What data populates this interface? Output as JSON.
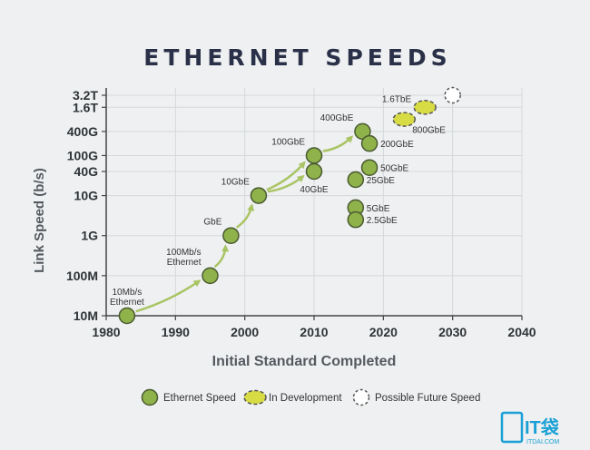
{
  "colors": {
    "grid": "#d5d8db",
    "axis": "#444444",
    "point_fill": "#8fb24b",
    "point_stroke": "#4a5a30",
    "dev_fill": "#d7dc45",
    "dev_stroke": "#555555",
    "future_fill": "#ffffff",
    "future_stroke": "#555555",
    "arrow": "#a9c463",
    "title": "#2a3048"
  },
  "watermark": {
    "brand": "IT袋",
    "url": "ITDAI.COM"
  },
  "chart_data": {
    "type": "scatter",
    "title": "ETHERNET SPEEDS",
    "xlabel": "Initial Standard Completed",
    "ylabel": "Link Speed (b/s)",
    "xlim": [
      1980,
      2040
    ],
    "xticks": [
      1980,
      1990,
      2000,
      2010,
      2020,
      2030,
      2040
    ],
    "y_scale": "log",
    "yticks": [
      {
        "label": "3.2T",
        "value": 3200000000000.0
      },
      {
        "label": "1.6T",
        "value": 1600000000000.0
      },
      {
        "label": "400G",
        "value": 400000000000.0
      },
      {
        "label": "100G",
        "value": 100000000000.0
      },
      {
        "label": "40G",
        "value": 40000000000.0
      },
      {
        "label": "10G",
        "value": 10000000000.0
      },
      {
        "label": "1G",
        "value": 1000000000.0
      },
      {
        "label": "100M",
        "value": 100000000.0
      },
      {
        "label": "10M",
        "value": 10000000.0
      }
    ],
    "grid": true,
    "legend_position": "bottom",
    "legend": [
      {
        "label": "Ethernet Speed",
        "kind": "ethernet"
      },
      {
        "label": "In Development",
        "kind": "dev"
      },
      {
        "label": "Possible Future Speed",
        "kind": "future"
      }
    ],
    "points": [
      {
        "label": "10Mb/s\nEthernet",
        "x": 1983,
        "y": 10000000.0,
        "kind": "ethernet",
        "label_pos": "above"
      },
      {
        "label": "100Mb/s\nEthernet",
        "x": 1995,
        "y": 100000000.0,
        "kind": "ethernet",
        "label_pos": "above-left"
      },
      {
        "label": "GbE",
        "x": 1998,
        "y": 1000000000.0,
        "kind": "ethernet",
        "label_pos": "above-left"
      },
      {
        "label": "10GbE",
        "x": 2002,
        "y": 10000000000.0,
        "kind": "ethernet",
        "label_pos": "above-left"
      },
      {
        "label": "40GbE",
        "x": 2010,
        "y": 40000000000.0,
        "kind": "ethernet",
        "label_pos": "below"
      },
      {
        "label": "100GbE",
        "x": 2010,
        "y": 100000000000.0,
        "kind": "ethernet",
        "label_pos": "above-left"
      },
      {
        "label": "400GbE",
        "x": 2017,
        "y": 400000000000.0,
        "kind": "ethernet",
        "label_pos": "above-left"
      },
      {
        "label": "200GbE",
        "x": 2018,
        "y": 200000000000.0,
        "kind": "ethernet",
        "label_pos": "right"
      },
      {
        "label": "50GbE",
        "x": 2018,
        "y": 50000000000.0,
        "kind": "ethernet",
        "label_pos": "right"
      },
      {
        "label": "25GbE",
        "x": 2016,
        "y": 25000000000.0,
        "kind": "ethernet",
        "label_pos": "right"
      },
      {
        "label": "5GbE",
        "x": 2016,
        "y": 5000000000.0,
        "kind": "ethernet",
        "label_pos": "right"
      },
      {
        "label": "2.5GbE",
        "x": 2016,
        "y": 2500000000.0,
        "kind": "ethernet",
        "label_pos": "right"
      },
      {
        "label": "1.6TbE",
        "x": 2026,
        "y": 1600000000000.0,
        "kind": "dev",
        "label_pos": "left"
      },
      {
        "label": "800GbE",
        "x": 2023,
        "y": 800000000000.0,
        "kind": "dev",
        "label_pos": "below-right"
      },
      {
        "label": "",
        "x": 2030,
        "y": 3200000000000.0,
        "kind": "future",
        "label_pos": "none"
      }
    ],
    "arrows": [
      {
        "from": "10Mb/s\nEthernet",
        "to": "100Mb/s\nEthernet"
      },
      {
        "from": "100Mb/s\nEthernet",
        "to": "GbE"
      },
      {
        "from": "GbE",
        "to": "10GbE"
      },
      {
        "from": "10GbE",
        "to": "40GbE"
      },
      {
        "from": "10GbE",
        "to": "100GbE"
      },
      {
        "from": "100GbE",
        "to": "400GbE"
      }
    ]
  }
}
